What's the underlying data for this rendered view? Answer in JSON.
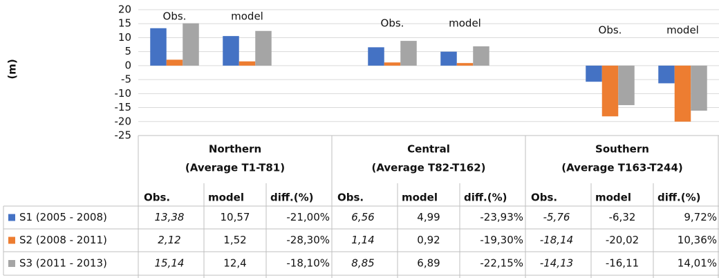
{
  "chart_data": {
    "type": "bar",
    "y_label": "(m)",
    "categories": [
      "Obs.",
      "model",
      null,
      "Obs.",
      "model",
      null,
      "Obs.",
      "model"
    ],
    "series": [
      {
        "name": "S1 (2005 - 2008)",
        "color": "#4472c4",
        "values": [
          13.38,
          10.57,
          null,
          6.56,
          4.99,
          null,
          -5.76,
          -6.32
        ],
        "value_labels": [
          "13,38",
          "10,57",
          null,
          "6,56",
          "4,99",
          null,
          "-5,76",
          "-6,32"
        ],
        "diff": [
          "-21,00%",
          "-23,93%",
          "9,72%"
        ]
      },
      {
        "name": "S2 (2008 - 2011)",
        "color": "#ed7d31",
        "values": [
          2.12,
          1.52,
          null,
          1.14,
          0.92,
          null,
          -18.14,
          -20.02
        ],
        "value_labels": [
          "2,12",
          "1,52",
          null,
          "1,14",
          "0,92",
          null,
          "-18,14",
          "-20,02"
        ],
        "diff": [
          "-28,30%",
          "-19,30%",
          "10,36%"
        ]
      },
      {
        "name": "S3 (2011 - 2013)",
        "color": "#a5a5a5",
        "values": [
          15.14,
          12.4,
          null,
          8.85,
          6.89,
          null,
          -14.13,
          -16.11
        ],
        "value_labels": [
          "15,14",
          "12,4",
          null,
          "8,85",
          "6,89",
          null,
          "-14,13",
          "-16,11"
        ],
        "diff": [
          "-18,10%",
          "-22,15%",
          "14,01%"
        ]
      }
    ],
    "regions": [
      {
        "name": "Northern",
        "subtitle": "(Average T1-T81)"
      },
      {
        "name": "Central",
        "subtitle": "(Average T82-T162)"
      },
      {
        "name": "Southern",
        "subtitle": "(Average T163-T244)"
      }
    ],
    "table_headers": [
      "Obs.",
      "model",
      "diff.(%)"
    ],
    "ylim": [
      -25,
      20
    ],
    "yticks": [
      -25,
      -20,
      -15,
      -10,
      -5,
      0,
      5,
      10,
      15,
      20
    ],
    "grid": true
  }
}
